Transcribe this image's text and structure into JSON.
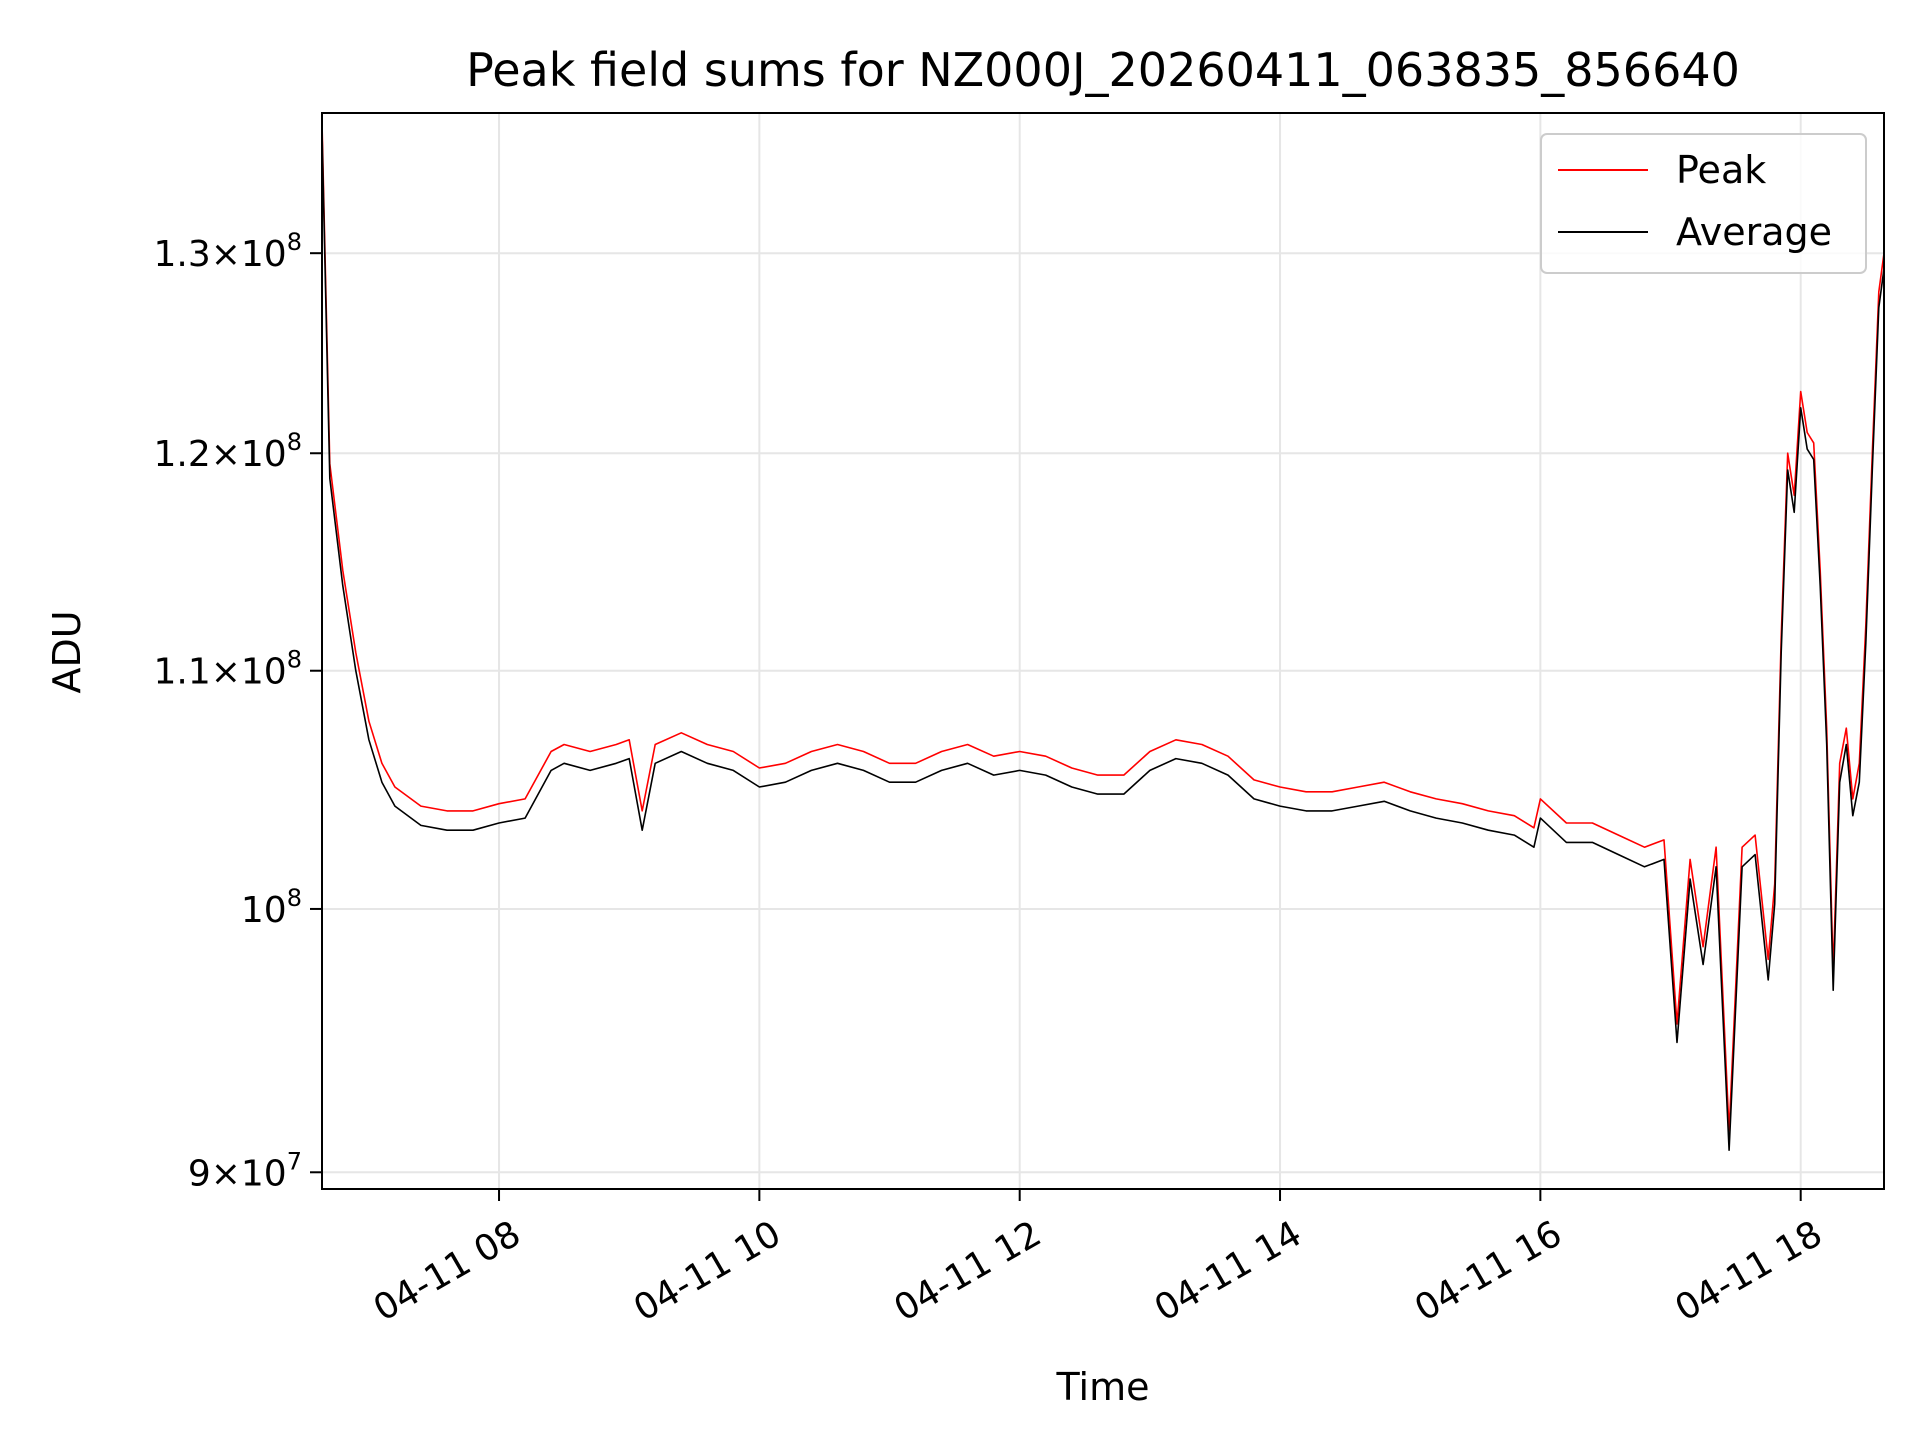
{
  "chart_data": {
    "type": "line",
    "title": "Peak field sums for NZ000J_20260411_063835_856640",
    "xlabel": "Time",
    "ylabel": "ADU",
    "yscale": "log",
    "ylim": [
      89400000,
      137500000
    ],
    "xlim_hours": [
      6.64,
      18.64
    ],
    "grid": true,
    "legend_position": "upper right",
    "x_ticks": [
      {
        "value": 8,
        "label": "04-11 08"
      },
      {
        "value": 10,
        "label": "04-11 10"
      },
      {
        "value": 12,
        "label": "04-11 12"
      },
      {
        "value": 14,
        "label": "04-11 14"
      },
      {
        "value": 16,
        "label": "04-11 16"
      },
      {
        "value": 18,
        "label": "04-11 18"
      }
    ],
    "y_ticks": [
      {
        "value": 90000000,
        "mantissa": "9",
        "exponent": "7"
      },
      {
        "value": 100000000,
        "mantissa": "",
        "exponent": "8"
      },
      {
        "value": 110000000,
        "mantissa": "1.1",
        "exponent": "8"
      },
      {
        "value": 120000000,
        "mantissa": "1.2",
        "exponent": "8"
      },
      {
        "value": 130000000,
        "mantissa": "1.3",
        "exponent": "8"
      }
    ],
    "times_label": "hours of day 2026-04-11",
    "x": [
      6.64,
      6.7,
      6.8,
      6.9,
      7.0,
      7.1,
      7.2,
      7.4,
      7.6,
      7.8,
      8.0,
      8.2,
      8.4,
      8.5,
      8.7,
      8.9,
      9.0,
      9.1,
      9.2,
      9.4,
      9.6,
      9.8,
      10.0,
      10.2,
      10.4,
      10.6,
      10.8,
      11.0,
      11.2,
      11.4,
      11.6,
      11.8,
      12.0,
      12.2,
      12.4,
      12.6,
      12.8,
      13.0,
      13.2,
      13.4,
      13.6,
      13.8,
      14.0,
      14.2,
      14.4,
      14.6,
      14.8,
      15.0,
      15.2,
      15.4,
      15.6,
      15.8,
      15.95,
      16.0,
      16.2,
      16.4,
      16.6,
      16.8,
      16.95,
      17.05,
      17.15,
      17.25,
      17.35,
      17.45,
      17.55,
      17.65,
      17.75,
      17.8,
      17.85,
      17.9,
      17.95,
      18.0,
      18.05,
      18.1,
      18.15,
      18.2,
      18.25,
      18.3,
      18.35,
      18.4,
      18.45,
      18.5,
      18.55,
      18.6,
      18.64
    ],
    "series": [
      {
        "name": "Peak",
        "color": "#ff0000",
        "values": [
          137000000,
          119500000,
          114500000,
          110800000,
          107800000,
          106000000,
          105000000,
          104200000,
          104000000,
          104000000,
          104300000,
          104500000,
          106500000,
          106800000,
          106500000,
          106800000,
          107000000,
          104000000,
          106800000,
          107300000,
          106800000,
          106500000,
          105800000,
          106000000,
          106500000,
          106800000,
          106500000,
          106000000,
          106000000,
          106500000,
          106800000,
          106300000,
          106500000,
          106300000,
          105800000,
          105500000,
          105500000,
          106500000,
          107000000,
          106800000,
          106300000,
          105300000,
          105000000,
          104800000,
          104800000,
          105000000,
          105200000,
          104800000,
          104500000,
          104300000,
          104000000,
          103800000,
          103300000,
          104500000,
          103500000,
          103500000,
          103000000,
          102500000,
          102800000,
          95500000,
          102000000,
          98500000,
          102500000,
          91500000,
          102500000,
          103000000,
          98000000,
          101000000,
          111500000,
          120000000,
          118000000,
          123000000,
          121000000,
          120500000,
          114500000,
          107500000,
          97500000,
          106000000,
          107500000,
          104500000,
          106000000,
          112000000,
          120000000,
          128000000,
          130000000
        ]
      },
      {
        "name": "Average",
        "color": "#000000",
        "values": [
          136500000,
          118800000,
          113800000,
          110000000,
          107000000,
          105200000,
          104200000,
          103400000,
          103200000,
          103200000,
          103500000,
          103700000,
          105700000,
          106000000,
          105700000,
          106000000,
          106200000,
          103200000,
          106000000,
          106500000,
          106000000,
          105700000,
          105000000,
          105200000,
          105700000,
          106000000,
          105700000,
          105200000,
          105200000,
          105700000,
          106000000,
          105500000,
          105700000,
          105500000,
          105000000,
          104700000,
          104700000,
          105700000,
          106200000,
          106000000,
          105500000,
          104500000,
          104200000,
          104000000,
          104000000,
          104200000,
          104400000,
          104000000,
          103700000,
          103500000,
          103200000,
          103000000,
          102500000,
          103700000,
          102700000,
          102700000,
          102200000,
          101700000,
          102000000,
          94800000,
          101200000,
          97800000,
          101700000,
          90800000,
          101700000,
          102200000,
          97200000,
          100200000,
          110800000,
          119200000,
          117200000,
          122200000,
          120200000,
          119700000,
          113800000,
          106800000,
          96800000,
          105200000,
          106800000,
          103800000,
          105200000,
          111200000,
          119200000,
          127200000,
          129200000
        ]
      }
    ]
  }
}
